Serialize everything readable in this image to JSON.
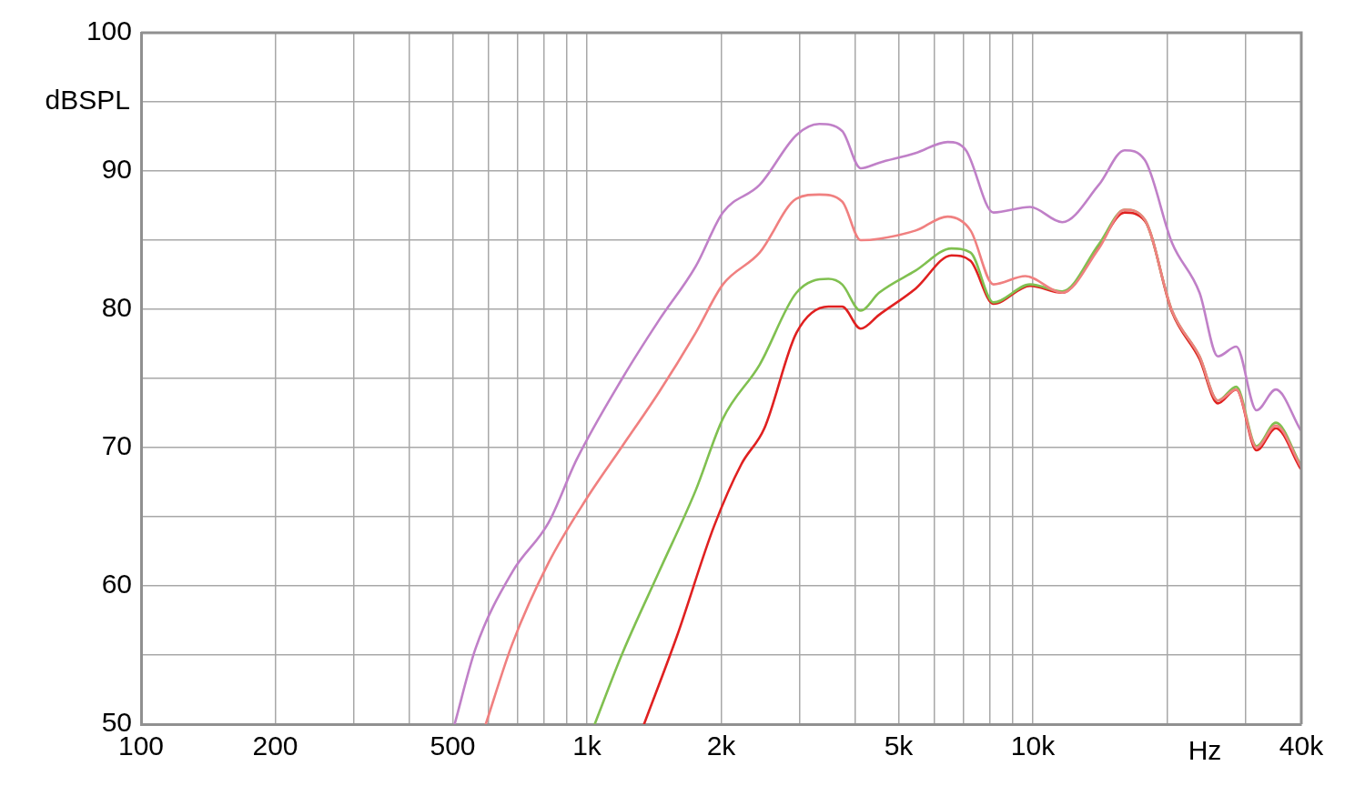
{
  "chart_data": {
    "type": "line",
    "xlabel": "Hz",
    "ylabel": "dBSPL",
    "log": "x",
    "grid": true,
    "legend": false,
    "marker": "none",
    "line_style": "solid",
    "xlim": [
      100,
      40000
    ],
    "ylim": [
      50,
      100
    ],
    "xticks": [
      100,
      {
        "value": 200,
        "label": "200"
      },
      {
        "value": 300,
        "label": null
      },
      {
        "value": 400,
        "label": null
      },
      {
        "value": 500,
        "label": "500"
      },
      {
        "value": 600,
        "label": null
      },
      {
        "value": 700,
        "label": null
      },
      {
        "value": 800,
        "label": null
      },
      {
        "value": 900,
        "label": null
      },
      {
        "value": 1000,
        "label": "1k"
      },
      {
        "value": 2000,
        "label": "2k"
      },
      {
        "value": 3000,
        "label": null
      },
      {
        "value": 4000,
        "label": null
      },
      {
        "value": 5000,
        "label": "5k"
      },
      {
        "value": 6000,
        "label": null
      },
      {
        "value": 7000,
        "label": null
      },
      {
        "value": 8000,
        "label": null
      },
      {
        "value": 9000,
        "label": null
      },
      {
        "value": 10000,
        "label": "10k"
      },
      {
        "value": 20000,
        "label": null
      },
      {
        "value": 30000,
        "label": null
      },
      {
        "value": 40000,
        "label": "40k"
      }
    ],
    "yticks": [
      50,
      {
        "value": 55,
        "label": null
      },
      60,
      {
        "value": 65,
        "label": null
      },
      70,
      {
        "value": 75,
        "label": null
      },
      80,
      {
        "value": 85,
        "label": null
      },
      90,
      {
        "value": 95,
        "label": null
      },
      100
    ],
    "series": [
      {
        "color": "#c080c8",
        "x": [
          505,
          563,
          680,
          821,
          947,
          1200,
          1450,
          1753,
          2018,
          2440,
          2950,
          3320,
          3735,
          4110,
          4520,
          5460,
          6440,
          7080,
          8160,
          9860,
          11640,
          14060,
          16060,
          17820,
          20520,
          23650,
          26000,
          28590,
          31750,
          35070,
          39810
        ],
        "values": [
          50,
          55.5,
          61.0,
          64.6,
          69.1,
          75.0,
          79.2,
          83.1,
          87.0,
          89.0,
          92.6,
          93.4,
          92.9,
          90.2,
          90.6,
          91.3,
          92.1,
          91.5,
          87.0,
          87.4,
          86.3,
          89.0,
          91.5,
          90.8,
          84.8,
          81.2,
          76.6,
          77.3,
          72.7,
          74.2,
          71.3
        ]
      },
      {
        "color": "#f08080",
        "x": [
          593,
          680,
          821,
          993,
          1200,
          1450,
          1753,
          2018,
          2440,
          2950,
          3320,
          3735,
          4110,
          4520,
          5460,
          6440,
          7250,
          8160,
          9620,
          11640,
          14060,
          16060,
          17820,
          20520,
          23650,
          26000,
          28590,
          31750,
          35070,
          39810
        ],
        "values": [
          50,
          55.8,
          61.7,
          66.2,
          70.1,
          74.0,
          78.3,
          81.8,
          84.1,
          88.0,
          88.3,
          87.8,
          85.0,
          85.1,
          85.7,
          86.7,
          85.7,
          81.8,
          82.4,
          81.2,
          84.4,
          87.2,
          86.5,
          79.9,
          76.6,
          73.4,
          74.2,
          70.0,
          71.6,
          68.7
        ]
      },
      {
        "color": "#80c050",
        "x": [
          1041,
          1200,
          1450,
          1753,
          2018,
          2440,
          2950,
          3480,
          3735,
          4110,
          4520,
          5460,
          6570,
          7250,
          8160,
          9860,
          11640,
          14060,
          16060,
          17820,
          20520,
          23650,
          26000,
          28590,
          31750,
          35070,
          39810
        ],
        "values": [
          50,
          55.1,
          61.0,
          66.9,
          72.1,
          76.0,
          81.2,
          82.2,
          81.8,
          79.9,
          81.2,
          82.8,
          84.4,
          84.1,
          80.5,
          81.8,
          81.3,
          84.7,
          87.2,
          86.5,
          79.9,
          76.6,
          73.4,
          74.4,
          70.1,
          71.8,
          68.8
        ]
      },
      {
        "color": "#e02020",
        "x": [
          1343,
          1593,
          1927,
          2220,
          2500,
          2950,
          3480,
          3735,
          4110,
          4520,
          5460,
          6570,
          7250,
          8160,
          9860,
          11640,
          14060,
          16060,
          17820,
          20520,
          23650,
          26000,
          28590,
          31750,
          35070,
          39810
        ],
        "values": [
          50,
          56.4,
          64.3,
          68.8,
          71.4,
          78.3,
          80.2,
          80.2,
          78.6,
          79.6,
          81.5,
          83.9,
          83.5,
          80.4,
          81.7,
          81.2,
          84.6,
          87.0,
          86.4,
          79.8,
          76.4,
          73.2,
          74.2,
          69.8,
          71.4,
          68.5
        ]
      }
    ]
  }
}
